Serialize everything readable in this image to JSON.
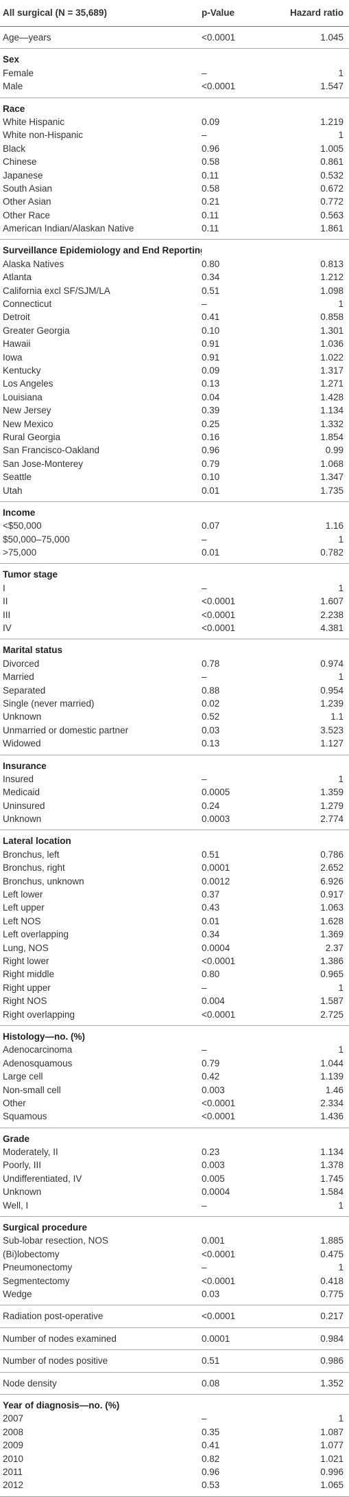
{
  "table": {
    "header": [
      "All surgical (N = 35,689)",
      "p-Value",
      "Hazard ratio"
    ],
    "groups": [
      {
        "rows": [
          [
            "Age—years",
            "<0.0001",
            "1.045"
          ]
        ]
      },
      {
        "title": "Sex",
        "rows": [
          [
            "Female",
            "–",
            "1"
          ],
          [
            "Male",
            "<0.0001",
            "1.547"
          ]
        ]
      },
      {
        "title": "Race",
        "rows": [
          [
            "White Hispanic",
            "0.09",
            "1.219"
          ],
          [
            "White non-Hispanic",
            "–",
            "1"
          ],
          [
            "Black",
            "0.96",
            "1.005"
          ],
          [
            "Chinese",
            "0.58",
            "0.861"
          ],
          [
            "Japanese",
            "0.11",
            "0.532"
          ],
          [
            "South Asian",
            "0.58",
            "0.672"
          ],
          [
            "Other Asian",
            "0.21",
            "0.772"
          ],
          [
            "Other Race",
            "0.11",
            "0.563"
          ],
          [
            "American Indian/Alaskan Native",
            "0.11",
            "1.861"
          ]
        ]
      },
      {
        "title": "Surveillance Epidemiology and End Reporting Registry",
        "rows": [
          [
            "Alaska Natives",
            "0.80",
            "0.813"
          ],
          [
            "Atlanta",
            "0.34",
            "1.212"
          ],
          [
            "California excl SF/SJM/LA",
            "0.51",
            "1.098"
          ],
          [
            "Connecticut",
            "–",
            "1"
          ],
          [
            "Detroit",
            "0.41",
            "0.858"
          ],
          [
            "Greater Georgia",
            "0.10",
            "1.301"
          ],
          [
            "Hawaii",
            "0.91",
            "1.036"
          ],
          [
            "Iowa",
            "0.91",
            "1.022"
          ],
          [
            "Kentucky",
            "0.09",
            "1.317"
          ],
          [
            "Los Angeles",
            "0.13",
            "1.271"
          ],
          [
            "Louisiana",
            "0.04",
            "1.428"
          ],
          [
            "New Jersey",
            "0.39",
            "1.134"
          ],
          [
            "New Mexico",
            "0.25",
            "1.332"
          ],
          [
            "Rural Georgia",
            "0.16",
            "1.854"
          ],
          [
            "San Francisco-Oakland",
            "0.96",
            "0.99"
          ],
          [
            "San Jose-Monterey",
            "0.79",
            "1.068"
          ],
          [
            "Seattle",
            "0.10",
            "1.347"
          ],
          [
            "Utah",
            "0.01",
            "1.735"
          ]
        ]
      },
      {
        "title": "Income",
        "rows": [
          [
            "<$50,000",
            "0.07",
            "1.16"
          ],
          [
            "$50,000–75,000",
            "–",
            "1"
          ],
          [
            ">75,000",
            "0.01",
            "0.782"
          ]
        ]
      },
      {
        "title": "Tumor stage",
        "rows": [
          [
            "I",
            "–",
            "1"
          ],
          [
            "II",
            "<0.0001",
            "1.607"
          ],
          [
            "III",
            "<0.0001",
            "2.238"
          ],
          [
            "IV",
            "<0.0001",
            "4.381"
          ]
        ]
      },
      {
        "title": "Marital status",
        "rows": [
          [
            "Divorced",
            "0.78",
            "0.974"
          ],
          [
            "Married",
            "–",
            "1"
          ],
          [
            "Separated",
            "0.88",
            "0.954"
          ],
          [
            "Single (never married)",
            "0.02",
            "1.239"
          ],
          [
            "Unknown",
            "0.52",
            "1.1"
          ],
          [
            "Unmarried or domestic partner",
            "0.03",
            "3.523"
          ],
          [
            "Widowed",
            "0.13",
            "1.127"
          ]
        ]
      },
      {
        "title": "Insurance",
        "rows": [
          [
            "Insured",
            "–",
            "1"
          ],
          [
            "Medicaid",
            "0.0005",
            "1.359"
          ],
          [
            "Uninsured",
            "0.24",
            "1.279"
          ],
          [
            "Unknown",
            "0.0003",
            "2.774"
          ]
        ]
      },
      {
        "title": "Lateral location",
        "rows": [
          [
            "Bronchus, left",
            "0.51",
            "0.786"
          ],
          [
            "Bronchus, right",
            "0.0001",
            "2.652"
          ],
          [
            "Bronchus, unknown",
            "0.0012",
            "6.926"
          ],
          [
            "Left lower",
            "0.37",
            "0.917"
          ],
          [
            "Left upper",
            "0.43",
            "1.063"
          ],
          [
            "Left NOS",
            "0.01",
            "1.628"
          ],
          [
            "Left overlapping",
            "0.34",
            "1.369"
          ],
          [
            "Lung, NOS",
            "0.0004",
            "2.37"
          ],
          [
            "Right lower",
            "<0.0001",
            "1.386"
          ],
          [
            "Right middle",
            "0.80",
            "0.965"
          ],
          [
            "Right upper",
            "–",
            "1"
          ],
          [
            "Right NOS",
            "0.004",
            "1.587"
          ],
          [
            "Right overlapping",
            "<0.0001",
            "2.725"
          ]
        ]
      },
      {
        "title": "Histology—no. (%)",
        "rows": [
          [
            "Adenocarcinoma",
            "–",
            "1"
          ],
          [
            "Adenosquamous",
            "0.79",
            "1.044"
          ],
          [
            "Large cell",
            "0.42",
            "1.139"
          ],
          [
            "Non-small cell",
            "0.003",
            "1.46"
          ],
          [
            "Other",
            "<0.0001",
            "2.334"
          ],
          [
            "Squamous",
            "<0.0001",
            "1.436"
          ]
        ]
      },
      {
        "title": "Grade",
        "rows": [
          [
            "Moderately, II",
            "0.23",
            "1.134"
          ],
          [
            "Poorly, III",
            "0.003",
            "1.378"
          ],
          [
            "Undifferentiated, IV",
            "0.005",
            "1.745"
          ],
          [
            "Unknown",
            "0.0004",
            "1.584"
          ],
          [
            "Well, I",
            "–",
            "1"
          ]
        ]
      },
      {
        "title": "Surgical procedure",
        "rows": [
          [
            "Sub-lobar resection, NOS",
            "0.001",
            "1.885"
          ],
          [
            "(Bi)lobectomy",
            "<0.0001",
            "0.475"
          ],
          [
            "Pneumonectomy",
            "–",
            "1"
          ],
          [
            "Segmentectomy",
            "<0.0001",
            "0.418"
          ],
          [
            "Wedge",
            "0.03",
            "0.775"
          ]
        ]
      },
      {
        "rows": [
          [
            "Radiation post-operative",
            "<0.0001",
            "0.217"
          ]
        ]
      },
      {
        "rows": [
          [
            "Number of nodes examined",
            "0.0001",
            "0.984"
          ]
        ]
      },
      {
        "rows": [
          [
            "Number of nodes positive",
            "0.51",
            "0.986"
          ]
        ]
      },
      {
        "rows": [
          [
            "Node density",
            "0.08",
            "1.352"
          ]
        ]
      },
      {
        "title": "Year of diagnosis—no. (%)",
        "rows": [
          [
            "2007",
            "–",
            "1"
          ],
          [
            "2008",
            "0.35",
            "1.087"
          ],
          [
            "2009",
            "0.41",
            "1.077"
          ],
          [
            "2010",
            "0.82",
            "1.021"
          ],
          [
            "2011",
            "0.96",
            "0.996"
          ],
          [
            "2012",
            "0.53",
            "1.065"
          ]
        ]
      }
    ]
  }
}
